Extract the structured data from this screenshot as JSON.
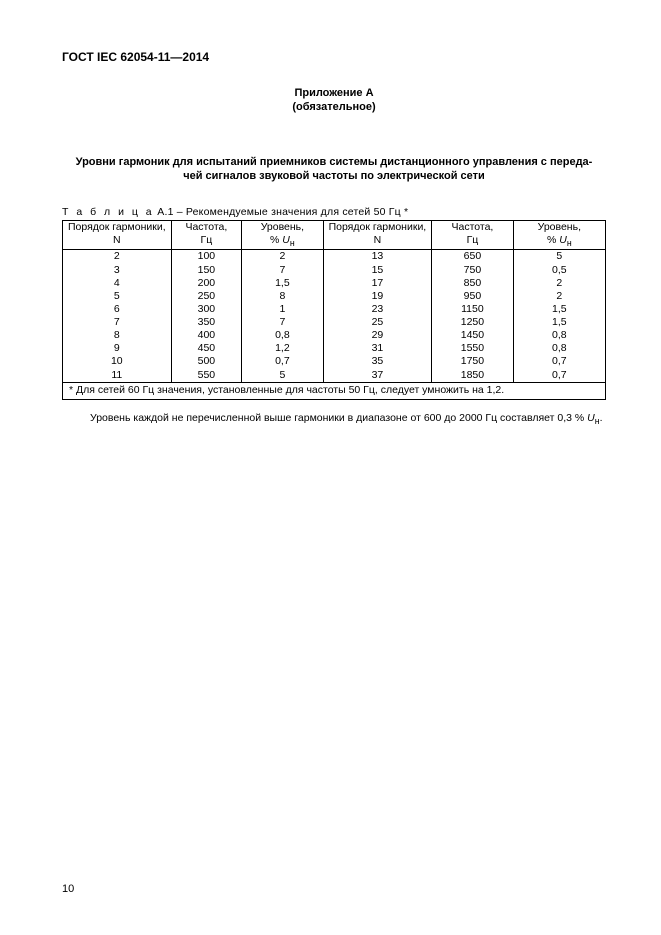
{
  "doc_id": "ГОСТ IEC 62054-11—2014",
  "annex": {
    "line1": "Приложение А",
    "line2": "(обязательное)"
  },
  "section_title": {
    "line1": "Уровни гармоник для испытаний приемников системы дистанционного управления с переда-",
    "line2": "чей сигналов звуковой  частоты по электрической сети"
  },
  "table_caption_prefix": "Т а б л и ц а",
  "table_caption_rest": "  А.1 –  Рекомендуемые значения для сетей 50 Гц *",
  "u_sub": "н",
  "headers": {
    "c1l1": "Порядок гармоники,",
    "c1l2": "N",
    "c2l1": "Частота,",
    "c2l2": "Гц",
    "c3l1": "Уровень,",
    "c3l2_pre": "%  ",
    "c3l2_u": "U",
    "c4l1": "Порядок гармоники,",
    "c4l2": "N",
    "c5l1": "Частота,",
    "c5l2": "Гц",
    "c6l1": "Уровень,",
    "c6l2_pre": "%  ",
    "c6l2_u": "U"
  },
  "rows": [
    {
      "n1": "2",
      "f1": "100",
      "l1": "2",
      "n2": "13",
      "f2": "650",
      "l2": "5"
    },
    {
      "n1": "3",
      "f1": "150",
      "l1": "7",
      "n2": "15",
      "f2": "750",
      "l2": "0,5"
    },
    {
      "n1": "4",
      "f1": "200",
      "l1": "1,5",
      "n2": "17",
      "f2": "850",
      "l2": "2"
    },
    {
      "n1": "5",
      "f1": "250",
      "l1": "8",
      "n2": "19",
      "f2": "950",
      "l2": "2"
    },
    {
      "n1": "6",
      "f1": "300",
      "l1": "1",
      "n2": "23",
      "f2": "1150",
      "l2": "1,5"
    },
    {
      "n1": "7",
      "f1": "350",
      "l1": "7",
      "n2": "25",
      "f2": "1250",
      "l2": "1,5"
    },
    {
      "n1": "8",
      "f1": "400",
      "l1": "0,8",
      "n2": "29",
      "f2": "1450",
      "l2": "0,8"
    },
    {
      "n1": "9",
      "f1": "450",
      "l1": "1,2",
      "n2": "31",
      "f2": "1550",
      "l2": "0,8"
    },
    {
      "n1": "10",
      "f1": "500",
      "l1": "0,7",
      "n2": "35",
      "f2": "1750",
      "l2": "0,7"
    },
    {
      "n1": "11",
      "f1": "550",
      "l1": "5",
      "n2": "37",
      "f2": "1850",
      "l2": "0,7"
    }
  ],
  "table_footer": "* Для сетей 60 Гц значения, установленные для частоты 50 Гц, следует умножить на 1,2.",
  "note_pre": "Уровень каждой не перечисленной выше гармоники в диапазоне от 600 до 2000 Гц составляет 0,3 % ",
  "note_u": "U",
  "note_post": ".",
  "page_number": "10",
  "layout": {
    "col_widths_pct": [
      20,
      13,
      15,
      20,
      15,
      17
    ],
    "font_size_body": 10.5,
    "font_size_header": 12,
    "border_color": "#000000",
    "background_color": "#ffffff"
  }
}
